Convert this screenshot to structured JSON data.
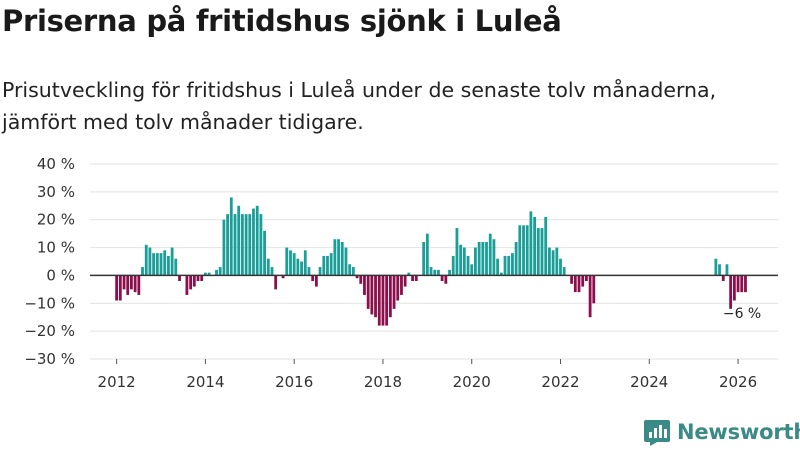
{
  "title": "Priserna på fritidshus sjönk i Luleå",
  "subtitle": "Prisutveckling för fritidshus i Luleå under de senaste tolv månaderna, jämfört med tolv månader tidigare.",
  "brand": "Newsworthy",
  "colors": {
    "positive": "#1a9e98",
    "negative": "#8c0e4a",
    "grid": "#e2e2e2",
    "zero": "#333333",
    "brand": "#3a8a85"
  },
  "chart_data": {
    "type": "bar",
    "title": "Priserna på fritidshus sjönk i Luleå",
    "xlabel": "",
    "ylabel": "",
    "ylim": [
      -30,
      40
    ],
    "xlim": [
      2011.4,
      2026.9
    ],
    "yticks": [
      -30,
      -20,
      -10,
      0,
      10,
      20,
      30,
      40
    ],
    "ytick_labels": [
      "−30 %",
      "−20 %",
      "−10 %",
      "0 %",
      "10 %",
      "20 %",
      "30 %",
      "40 %"
    ],
    "xticks": [
      2012,
      2014,
      2016,
      2018,
      2020,
      2022,
      2024,
      2026
    ],
    "xtick_labels": [
      "2012",
      "2014",
      "2016",
      "2018",
      "2020",
      "2022",
      "2024",
      "2026"
    ],
    "annotation": {
      "text": "−6 %",
      "x": 2026.0,
      "y": -6
    },
    "series": [
      {
        "name": "Prisutveckling",
        "points": [
          {
            "x": 2012.0,
            "y": -9
          },
          {
            "x": 2012.083,
            "y": -9
          },
          {
            "x": 2012.167,
            "y": -5
          },
          {
            "x": 2012.25,
            "y": -7
          },
          {
            "x": 2012.333,
            "y": -5
          },
          {
            "x": 2012.417,
            "y": -6
          },
          {
            "x": 2012.5,
            "y": -7
          },
          {
            "x": 2012.583,
            "y": 3
          },
          {
            "x": 2012.667,
            "y": 11
          },
          {
            "x": 2012.75,
            "y": 10
          },
          {
            "x": 2012.833,
            "y": 8
          },
          {
            "x": 2012.917,
            "y": 8
          },
          {
            "x": 2013.0,
            "y": 8
          },
          {
            "x": 2013.083,
            "y": 9
          },
          {
            "x": 2013.167,
            "y": 7
          },
          {
            "x": 2013.25,
            "y": 10
          },
          {
            "x": 2013.333,
            "y": 6
          },
          {
            "x": 2013.417,
            "y": -2
          },
          {
            "x": 2013.5,
            "y": 0
          },
          {
            "x": 2013.583,
            "y": -7
          },
          {
            "x": 2013.667,
            "y": -5
          },
          {
            "x": 2013.75,
            "y": -4
          },
          {
            "x": 2013.833,
            "y": -2
          },
          {
            "x": 2013.917,
            "y": -2
          },
          {
            "x": 2014.0,
            "y": 1
          },
          {
            "x": 2014.083,
            "y": 1
          },
          {
            "x": 2014.167,
            "y": 0
          },
          {
            "x": 2014.25,
            "y": 2
          },
          {
            "x": 2014.333,
            "y": 3
          },
          {
            "x": 2014.417,
            "y": 20
          },
          {
            "x": 2014.5,
            "y": 22
          },
          {
            "x": 2014.583,
            "y": 28
          },
          {
            "x": 2014.667,
            "y": 22
          },
          {
            "x": 2014.75,
            "y": 25
          },
          {
            "x": 2014.833,
            "y": 22
          },
          {
            "x": 2014.917,
            "y": 22
          },
          {
            "x": 2015.0,
            "y": 22
          },
          {
            "x": 2015.083,
            "y": 24
          },
          {
            "x": 2015.167,
            "y": 25
          },
          {
            "x": 2015.25,
            "y": 22
          },
          {
            "x": 2015.333,
            "y": 16
          },
          {
            "x": 2015.417,
            "y": 6
          },
          {
            "x": 2015.5,
            "y": 3
          },
          {
            "x": 2015.583,
            "y": -5
          },
          {
            "x": 2015.667,
            "y": 0
          },
          {
            "x": 2015.75,
            "y": -1
          },
          {
            "x": 2015.833,
            "y": 10
          },
          {
            "x": 2015.917,
            "y": 9
          },
          {
            "x": 2016.0,
            "y": 8
          },
          {
            "x": 2016.083,
            "y": 6
          },
          {
            "x": 2016.167,
            "y": 5
          },
          {
            "x": 2016.25,
            "y": 9
          },
          {
            "x": 2016.333,
            "y": 3
          },
          {
            "x": 2016.417,
            "y": -2
          },
          {
            "x": 2016.5,
            "y": -4
          },
          {
            "x": 2016.583,
            "y": 3
          },
          {
            "x": 2016.667,
            "y": 7
          },
          {
            "x": 2016.75,
            "y": 7
          },
          {
            "x": 2016.833,
            "y": 8
          },
          {
            "x": 2016.917,
            "y": 13
          },
          {
            "x": 2017.0,
            "y": 13
          },
          {
            "x": 2017.083,
            "y": 12
          },
          {
            "x": 2017.167,
            "y": 10
          },
          {
            "x": 2017.25,
            "y": 4
          },
          {
            "x": 2017.333,
            "y": 3
          },
          {
            "x": 2017.417,
            "y": -1
          },
          {
            "x": 2017.5,
            "y": -3
          },
          {
            "x": 2017.583,
            "y": -7
          },
          {
            "x": 2017.667,
            "y": -12
          },
          {
            "x": 2017.75,
            "y": -14
          },
          {
            "x": 2017.833,
            "y": -15
          },
          {
            "x": 2017.917,
            "y": -18
          },
          {
            "x": 2018.0,
            "y": -18
          },
          {
            "x": 2018.083,
            "y": -18
          },
          {
            "x": 2018.167,
            "y": -15
          },
          {
            "x": 2018.25,
            "y": -12
          },
          {
            "x": 2018.333,
            "y": -9
          },
          {
            "x": 2018.417,
            "y": -7
          },
          {
            "x": 2018.5,
            "y": -4
          },
          {
            "x": 2018.583,
            "y": 1
          },
          {
            "x": 2018.667,
            "y": -2
          },
          {
            "x": 2018.75,
            "y": -2
          },
          {
            "x": 2018.833,
            "y": 0
          },
          {
            "x": 2018.917,
            "y": 12
          },
          {
            "x": 2019.0,
            "y": 15
          },
          {
            "x": 2019.083,
            "y": 3
          },
          {
            "x": 2019.167,
            "y": 2
          },
          {
            "x": 2019.25,
            "y": 2
          },
          {
            "x": 2019.333,
            "y": -2
          },
          {
            "x": 2019.417,
            "y": -3
          },
          {
            "x": 2019.5,
            "y": 2
          },
          {
            "x": 2019.583,
            "y": 7
          },
          {
            "x": 2019.667,
            "y": 17
          },
          {
            "x": 2019.75,
            "y": 11
          },
          {
            "x": 2019.833,
            "y": 10
          },
          {
            "x": 2019.917,
            "y": 7
          },
          {
            "x": 2020.0,
            "y": 4
          },
          {
            "x": 2020.083,
            "y": 10
          },
          {
            "x": 2020.167,
            "y": 12
          },
          {
            "x": 2020.25,
            "y": 12
          },
          {
            "x": 2020.333,
            "y": 12
          },
          {
            "x": 2020.417,
            "y": 15
          },
          {
            "x": 2020.5,
            "y": 13
          },
          {
            "x": 2020.583,
            "y": 6
          },
          {
            "x": 2020.667,
            "y": 1
          },
          {
            "x": 2020.75,
            "y": 7
          },
          {
            "x": 2020.833,
            "y": 7
          },
          {
            "x": 2020.917,
            "y": 8
          },
          {
            "x": 2021.0,
            "y": 12
          },
          {
            "x": 2021.083,
            "y": 18
          },
          {
            "x": 2021.167,
            "y": 18
          },
          {
            "x": 2021.25,
            "y": 18
          },
          {
            "x": 2021.333,
            "y": 23
          },
          {
            "x": 2021.417,
            "y": 21
          },
          {
            "x": 2021.5,
            "y": 17
          },
          {
            "x": 2021.583,
            "y": 17
          },
          {
            "x": 2021.667,
            "y": 21
          },
          {
            "x": 2021.75,
            "y": 10
          },
          {
            "x": 2021.833,
            "y": 9
          },
          {
            "x": 2021.917,
            "y": 10
          },
          {
            "x": 2022.0,
            "y": 6
          },
          {
            "x": 2022.083,
            "y": 3
          },
          {
            "x": 2022.167,
            "y": 0
          },
          {
            "x": 2022.25,
            "y": -3
          },
          {
            "x": 2022.333,
            "y": -6
          },
          {
            "x": 2022.417,
            "y": -6
          },
          {
            "x": 2022.5,
            "y": -4
          },
          {
            "x": 2022.583,
            "y": -2
          },
          {
            "x": 2022.667,
            "y": -15
          },
          {
            "x": 2022.75,
            "y": -10
          },
          {
            "x": 2025.5,
            "y": 6
          },
          {
            "x": 2025.583,
            "y": 4
          },
          {
            "x": 2025.667,
            "y": -2
          },
          {
            "x": 2025.75,
            "y": 4
          },
          {
            "x": 2025.833,
            "y": -12
          },
          {
            "x": 2025.917,
            "y": -9
          },
          {
            "x": 2026.0,
            "y": -6
          },
          {
            "x": 2026.083,
            "y": -6
          },
          {
            "x": 2026.167,
            "y": -6
          }
        ]
      }
    ]
  }
}
